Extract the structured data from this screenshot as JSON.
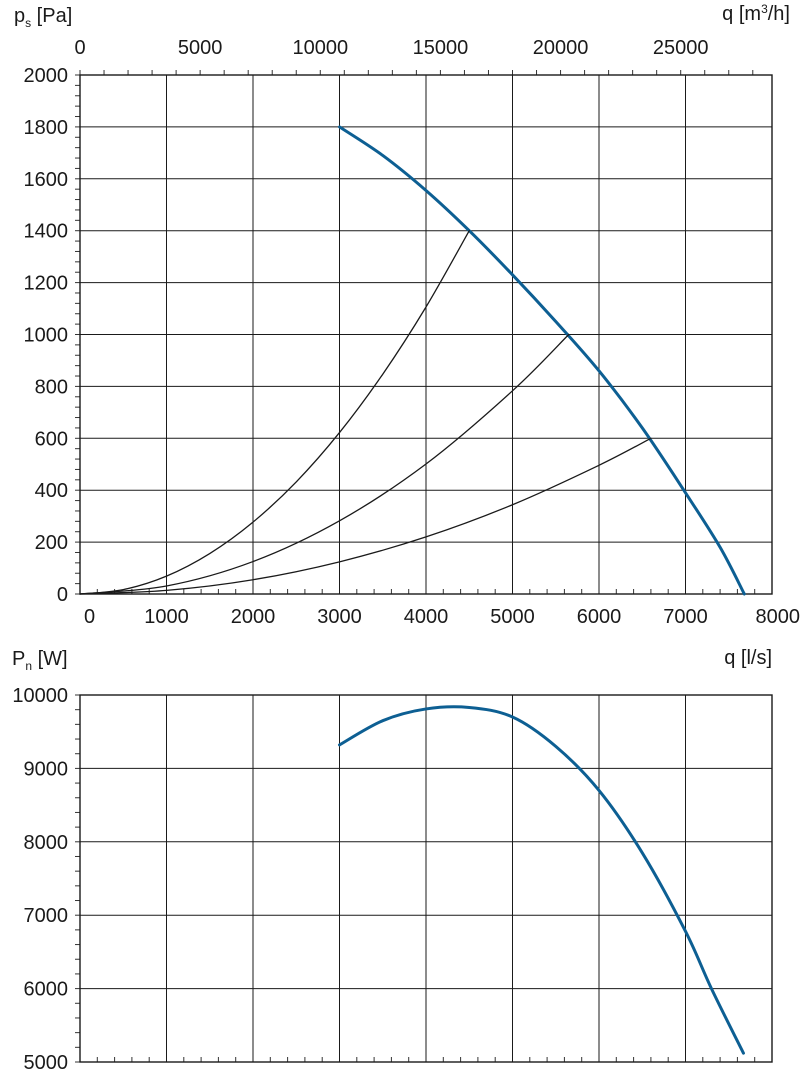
{
  "chart_data": [
    {
      "type": "line",
      "title": "",
      "ylabel": {
        "base": "p",
        "sub": "s",
        "rest": " [Pa]"
      },
      "xlabel_bottom": "q [l/s]",
      "xlabel_top": {
        "before": "q [m",
        "sup": "3",
        "after": "/h]"
      },
      "xlim": [
        0,
        8000
      ],
      "ylim": [
        0,
        2000
      ],
      "x_ticks": [
        0,
        1000,
        2000,
        3000,
        4000,
        5000,
        6000,
        7000,
        8000
      ],
      "x_tick_labels": [
        "0",
        "1000",
        "2000",
        "3000",
        "4000",
        "5000",
        "6000",
        "7000",
        "8000"
      ],
      "y_ticks": [
        0,
        200,
        400,
        600,
        800,
        1000,
        1200,
        1400,
        1600,
        1800,
        2000
      ],
      "y_tick_labels": [
        "0",
        "200",
        "400",
        "600",
        "800",
        "1000",
        "1200",
        "1400",
        "1600",
        "1800",
        "2000"
      ],
      "x2_ticks": [
        0,
        5000,
        10000,
        15000,
        20000,
        25000
      ],
      "x2_tick_labels": [
        "0",
        "5000",
        "10000",
        "15000",
        "20000",
        "25000"
      ],
      "x2_factor": 3.6,
      "grid": true,
      "series": [
        {
          "role": "fan-curve",
          "color": "#0d5f93",
          "x": [
            3000,
            3500,
            4000,
            4500,
            5000,
            5500,
            6000,
            6500,
            7000,
            7400,
            7680
          ],
          "y": [
            1800,
            1690,
            1555,
            1400,
            1230,
            1050,
            860,
            640,
            390,
            180,
            0
          ]
        },
        {
          "role": "system-curve",
          "color": "#1a1a1a",
          "x": [
            0,
            500,
            1000,
            1500,
            2000,
            2500,
            3000,
            3500,
            4000,
            4500
          ],
          "y": [
            0,
            17,
            69,
            156,
            277,
            432,
            622,
            847,
            1106,
            1400
          ]
        },
        {
          "role": "system-curve",
          "color": "#1a1a1a",
          "x": [
            0,
            1000,
            2000,
            3000,
            4000,
            5000,
            5650
          ],
          "y": [
            0,
            31,
            125,
            282,
            501,
            783,
            1000
          ]
        },
        {
          "role": "system-curve",
          "color": "#1a1a1a",
          "x": [
            0,
            1000,
            2000,
            3000,
            4000,
            5000,
            6000,
            6600
          ],
          "y": [
            0,
            14,
            55,
            124,
            220,
            344,
            496,
            600
          ]
        }
      ]
    },
    {
      "type": "line",
      "title": "",
      "ylabel": {
        "base": "P",
        "sub": "n",
        "rest": " [W]"
      },
      "xlim": [
        0,
        8000
      ],
      "ylim": [
        5000,
        10000
      ],
      "x_ticks": [
        0,
        1000,
        2000,
        3000,
        4000,
        5000,
        6000,
        7000,
        8000
      ],
      "y_ticks": [
        5000,
        6000,
        7000,
        8000,
        9000,
        10000
      ],
      "y_tick_labels": [
        "5000",
        "6000",
        "7000",
        "8000",
        "9000",
        "10000"
      ],
      "grid": true,
      "series": [
        {
          "role": "power-curve",
          "color": "#0d5f93",
          "x": [
            3000,
            3500,
            4000,
            4500,
            5000,
            5500,
            6000,
            6500,
            7000,
            7300,
            7670
          ],
          "y": [
            9320,
            9650,
            9810,
            9830,
            9700,
            9300,
            8700,
            7850,
            6780,
            6000,
            5120
          ]
        }
      ]
    }
  ]
}
